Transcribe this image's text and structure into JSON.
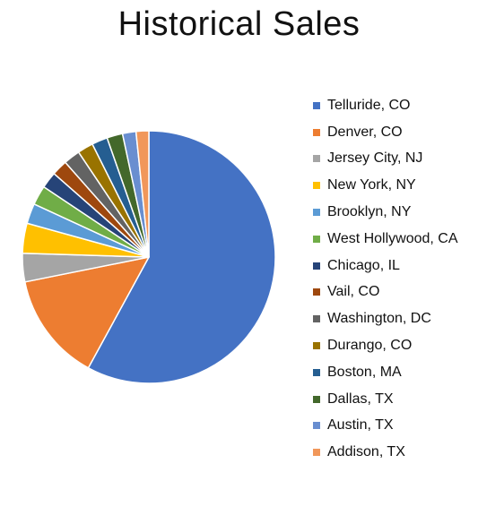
{
  "chart_data": {
    "type": "pie",
    "title": "Historical Sales",
    "legend_position": "right",
    "categories": [
      "Telluride, CO",
      "Denver, CO",
      "Jersey City, NJ",
      "New York, NY",
      "Brooklyn, NY",
      "West Hollywood, CA",
      "Chicago, IL",
      "Vail, CO",
      "Washington, DC",
      "Durango, CO",
      "Boston, MA",
      "Dallas, TX",
      "Austin, TX",
      "Addison, TX"
    ],
    "values": [
      60.5,
      14.5,
      3.8,
      4.0,
      2.7,
      2.6,
      2.2,
      2.1,
      2.2,
      2.1,
      2.1,
      2.1,
      1.8,
      1.7
    ],
    "colors": [
      "#4472C4",
      "#ED7D31",
      "#A5A5A5",
      "#FFC000",
      "#5B9BD5",
      "#70AD47",
      "#264478",
      "#9E480E",
      "#636363",
      "#997300",
      "#255E91",
      "#43682B",
      "#698ED0",
      "#F1975A"
    ]
  }
}
